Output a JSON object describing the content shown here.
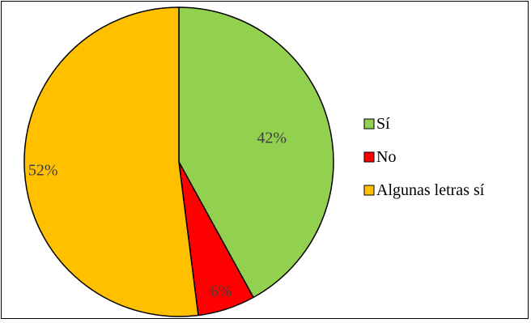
{
  "chart_data": {
    "type": "pie",
    "title": "",
    "slices": [
      {
        "label": "Sí",
        "value": 42,
        "display": "42%",
        "color": "#92D050"
      },
      {
        "label": "No",
        "value": 6,
        "display": "6%",
        "color": "#FF0000"
      },
      {
        "label": "Algunas letras sí",
        "value": 52,
        "display": "52%",
        "color": "#FFC000"
      }
    ],
    "start_angle_deg": 0,
    "direction": "clockwise",
    "legend_position": "right",
    "slice_border_color": "#000000"
  }
}
